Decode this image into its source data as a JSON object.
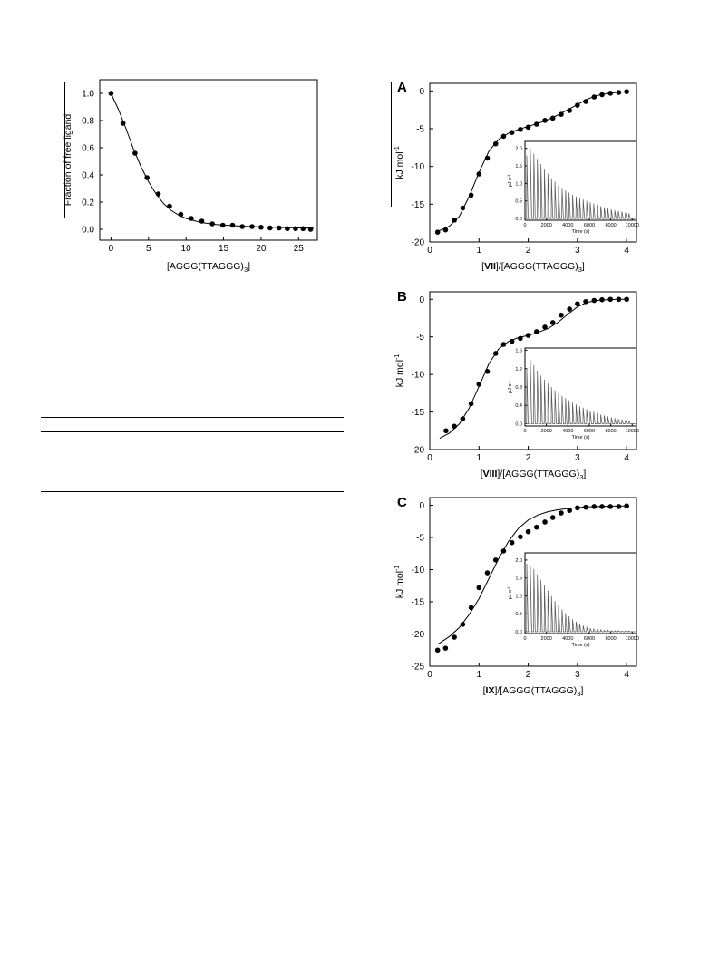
{
  "chart_data": [
    {
      "id": "fraction",
      "type": "scatter",
      "xlabel": "[AGGG(TTAGGG)3]",
      "ylabel": "Fraction of free ligand",
      "xlim": [
        -1.5,
        27.5
      ],
      "ylim": [
        -0.08,
        1.1
      ],
      "xticks": [
        0,
        5,
        10,
        15,
        20,
        25
      ],
      "yticks": [
        0.0,
        0.2,
        0.4,
        0.6,
        0.8,
        1.0
      ],
      "ytick_labels": [
        "0.0",
        "0.2",
        "0.4",
        "0.6",
        "0.8",
        "1.0"
      ],
      "series": [
        {
          "kind": "points",
          "x": [
            0,
            1.6,
            3.2,
            4.8,
            6.3,
            7.8,
            9.3,
            10.7,
            12.1,
            13.5,
            14.9,
            16.2,
            17.5,
            18.8,
            20.0,
            21.2,
            22.4,
            23.5,
            24.6,
            25.6,
            26.6
          ],
          "y": [
            1.0,
            0.78,
            0.56,
            0.38,
            0.26,
            0.17,
            0.11,
            0.08,
            0.06,
            0.04,
            0.03,
            0.03,
            0.02,
            0.02,
            0.015,
            0.01,
            0.01,
            0.005,
            0.005,
            0.005,
            0.0
          ]
        },
        {
          "kind": "fit",
          "x": [
            0,
            1,
            2,
            3,
            4,
            5,
            6,
            7,
            8,
            9,
            10,
            12,
            14,
            16,
            18,
            20,
            22,
            24,
            26,
            27
          ],
          "y": [
            1.0,
            0.88,
            0.74,
            0.59,
            0.46,
            0.35,
            0.26,
            0.19,
            0.14,
            0.105,
            0.08,
            0.05,
            0.035,
            0.027,
            0.021,
            0.017,
            0.014,
            0.012,
            0.01,
            0.009
          ]
        }
      ]
    },
    {
      "id": "A",
      "type": "scatter",
      "panel_label": "A",
      "xlabel_parts": [
        "[",
        "VII",
        "]/[AGGG(TTAGGG)",
        "3",
        "]"
      ],
      "ylabel": "kJ mol",
      "ylabel_sup": "-1",
      "xlim": [
        0,
        4.2
      ],
      "ylim": [
        -20,
        1
      ],
      "xticks": [
        0,
        1,
        2,
        3,
        4
      ],
      "yticks": [
        -20,
        -15,
        -10,
        -5,
        0
      ],
      "series": [
        {
          "kind": "points",
          "x": [
            0.16,
            0.32,
            0.5,
            0.67,
            0.84,
            1.0,
            1.17,
            1.34,
            1.5,
            1.67,
            1.84,
            2.0,
            2.17,
            2.34,
            2.5,
            2.67,
            2.84,
            3.0,
            3.17,
            3.34,
            3.5,
            3.67,
            3.84,
            4.0
          ],
          "y": [
            -18.7,
            -18.4,
            -17.1,
            -15.5,
            -13.8,
            -11.0,
            -8.9,
            -7.0,
            -6.0,
            -5.5,
            -5.1,
            -4.8,
            -4.4,
            -3.9,
            -3.6,
            -3.1,
            -2.6,
            -1.9,
            -1.4,
            -0.8,
            -0.5,
            -0.3,
            -0.2,
            -0.1
          ]
        },
        {
          "kind": "fit",
          "x": [
            0.16,
            0.4,
            0.6,
            0.8,
            1.0,
            1.2,
            1.4,
            1.6,
            1.8,
            2.0,
            2.2,
            2.4,
            2.6,
            2.8,
            3.0,
            3.2,
            3.4,
            3.6,
            3.8,
            4.0
          ],
          "y": [
            -18.6,
            -17.9,
            -16.6,
            -14.0,
            -10.8,
            -8.0,
            -6.4,
            -5.6,
            -5.1,
            -4.7,
            -4.3,
            -3.8,
            -3.2,
            -2.5,
            -1.8,
            -1.1,
            -0.6,
            -0.35,
            -0.2,
            -0.1
          ]
        }
      ],
      "inset": {
        "xlabel": "Time (s)",
        "ylabel": "µJ s",
        "ylabel_sup": "-1",
        "xlim": [
          0,
          10400
        ],
        "ylim": [
          -0.05,
          2.2
        ],
        "xticks": [
          0,
          2000,
          4000,
          6000,
          8000,
          10000
        ],
        "yticks": [
          0.0,
          0.5,
          1.0,
          1.5,
          2.0
        ],
        "ytick_labels": [
          "0.0",
          "0.5",
          "1.0",
          "1.5",
          "2.0"
        ],
        "peaks": [
          1.8,
          2.0,
          1.85,
          1.7,
          1.55,
          1.4,
          1.28,
          1.15,
          1.05,
          0.95,
          0.87,
          0.8,
          0.74,
          0.68,
          0.63,
          0.58,
          0.54,
          0.5,
          0.46,
          0.42,
          0.39,
          0.35,
          0.32,
          0.29,
          0.26,
          0.23,
          0.21,
          0.19,
          0.17,
          0.15
        ]
      }
    },
    {
      "id": "B",
      "type": "scatter",
      "panel_label": "B",
      "xlabel_parts": [
        "[",
        "VIII",
        "]/[AGGG(TTAGGG)",
        "3",
        "]"
      ],
      "ylabel": "kJ mol",
      "ylabel_sup": "-1",
      "xlim": [
        0,
        4.2
      ],
      "ylim": [
        -20,
        1
      ],
      "xticks": [
        0,
        1,
        2,
        3,
        4
      ],
      "yticks": [
        -20,
        -15,
        -10,
        -5,
        0
      ],
      "series": [
        {
          "kind": "points",
          "x": [
            0.33,
            0.5,
            0.67,
            0.84,
            1.0,
            1.17,
            1.34,
            1.5,
            1.67,
            1.84,
            2.0,
            2.17,
            2.34,
            2.5,
            2.67,
            2.84,
            3.0,
            3.17,
            3.34,
            3.5,
            3.67,
            3.84,
            4.0
          ],
          "y": [
            -17.5,
            -16.9,
            -15.9,
            -13.9,
            -11.3,
            -9.6,
            -7.2,
            -6.0,
            -5.6,
            -5.2,
            -4.8,
            -4.3,
            -3.7,
            -3.1,
            -2.1,
            -1.3,
            -0.6,
            -0.3,
            -0.15,
            -0.05,
            0.0,
            0.0,
            0.0
          ]
        },
        {
          "kind": "fit",
          "x": [
            0.2,
            0.4,
            0.6,
            0.8,
            1.0,
            1.2,
            1.4,
            1.6,
            1.8,
            2.0,
            2.2,
            2.4,
            2.6,
            2.8,
            3.0,
            3.2,
            3.4,
            3.6,
            3.8,
            4.0
          ],
          "y": [
            -18.5,
            -17.8,
            -16.6,
            -14.5,
            -11.6,
            -8.6,
            -6.6,
            -5.6,
            -5.1,
            -4.8,
            -4.4,
            -3.9,
            -3.1,
            -2.0,
            -1.0,
            -0.4,
            -0.15,
            -0.05,
            0.0,
            0.0
          ]
        }
      ],
      "inset": {
        "xlabel": "Time (s)",
        "ylabel": "µJ s",
        "ylabel_sup": "-1",
        "xlim": [
          0,
          10400
        ],
        "ylim": [
          -0.05,
          1.65
        ],
        "xticks": [
          0,
          2000,
          4000,
          6000,
          8000,
          10000
        ],
        "yticks": [
          0.0,
          0.4,
          0.8,
          1.2,
          1.6
        ],
        "ytick_labels": [
          "0.0",
          "0.4",
          "0.8",
          "1.2",
          "1.6"
        ],
        "peaks": [
          1.2,
          1.4,
          1.28,
          1.16,
          1.05,
          0.96,
          0.88,
          0.8,
          0.73,
          0.67,
          0.61,
          0.56,
          0.51,
          0.46,
          0.42,
          0.38,
          0.35,
          0.32,
          0.28,
          0.26,
          0.23,
          0.2,
          0.18,
          0.16,
          0.14,
          0.12,
          0.1,
          0.09,
          0.08,
          0.07
        ]
      }
    },
    {
      "id": "C",
      "type": "scatter",
      "panel_label": "C",
      "xlabel_parts": [
        "[",
        "IX",
        "]/[AGGG(TTAGGG)",
        "3",
        "]"
      ],
      "ylabel": "kJ mol",
      "ylabel_sup": "-1",
      "xlim": [
        0,
        4.2
      ],
      "ylim": [
        -25,
        1.2
      ],
      "xticks": [
        0,
        1,
        2,
        3,
        4
      ],
      "yticks": [
        -25,
        -20,
        -15,
        -10,
        -5,
        0
      ],
      "series": [
        {
          "kind": "points",
          "x": [
            0.16,
            0.32,
            0.5,
            0.67,
            0.84,
            1.0,
            1.17,
            1.34,
            1.5,
            1.67,
            1.84,
            2.0,
            2.17,
            2.34,
            2.5,
            2.67,
            2.84,
            3.0,
            3.17,
            3.34,
            3.5,
            3.67,
            3.84,
            4.0
          ],
          "y": [
            -22.5,
            -22.2,
            -20.5,
            -18.5,
            -15.9,
            -12.8,
            -10.5,
            -8.5,
            -7.1,
            -5.8,
            -4.9,
            -4.1,
            -3.4,
            -2.6,
            -1.9,
            -1.2,
            -0.8,
            -0.4,
            -0.3,
            -0.2,
            -0.2,
            -0.2,
            -0.2,
            -0.1
          ]
        },
        {
          "kind": "fit",
          "x": [
            0.16,
            0.4,
            0.6,
            0.8,
            1.0,
            1.2,
            1.4,
            1.6,
            1.8,
            2.0,
            2.2,
            2.4,
            2.6,
            2.8,
            3.0,
            3.2,
            3.4,
            3.6,
            3.8,
            4.0
          ],
          "y": [
            -21.6,
            -20.4,
            -19.0,
            -17.0,
            -14.5,
            -11.4,
            -8.3,
            -5.6,
            -3.6,
            -2.3,
            -1.5,
            -1.0,
            -0.7,
            -0.5,
            -0.35,
            -0.25,
            -0.2,
            -0.15,
            -0.1,
            -0.1
          ]
        }
      ],
      "inset": {
        "xlabel": "Time (s)",
        "ylabel": "µJ s",
        "ylabel_sup": "-1",
        "xlim": [
          0,
          10400
        ],
        "ylim": [
          -0.05,
          2.2
        ],
        "xticks": [
          0,
          2000,
          4000,
          6000,
          8000,
          10000
        ],
        "yticks": [
          0.0,
          0.5,
          1.0,
          1.5,
          2.0
        ],
        "ytick_labels": [
          "0.0",
          "0.5",
          "1.0",
          "1.5",
          "2.0"
        ],
        "peaks": [
          1.9,
          1.85,
          1.75,
          1.6,
          1.45,
          1.3,
          1.15,
          1.0,
          0.86,
          0.74,
          0.62,
          0.52,
          0.43,
          0.35,
          0.28,
          0.22,
          0.17,
          0.13,
          0.1,
          0.08,
          0.06,
          0.05,
          0.04,
          0.04,
          0.03,
          0.03,
          0.03,
          0.02,
          0.02,
          0.02
        ]
      }
    }
  ]
}
